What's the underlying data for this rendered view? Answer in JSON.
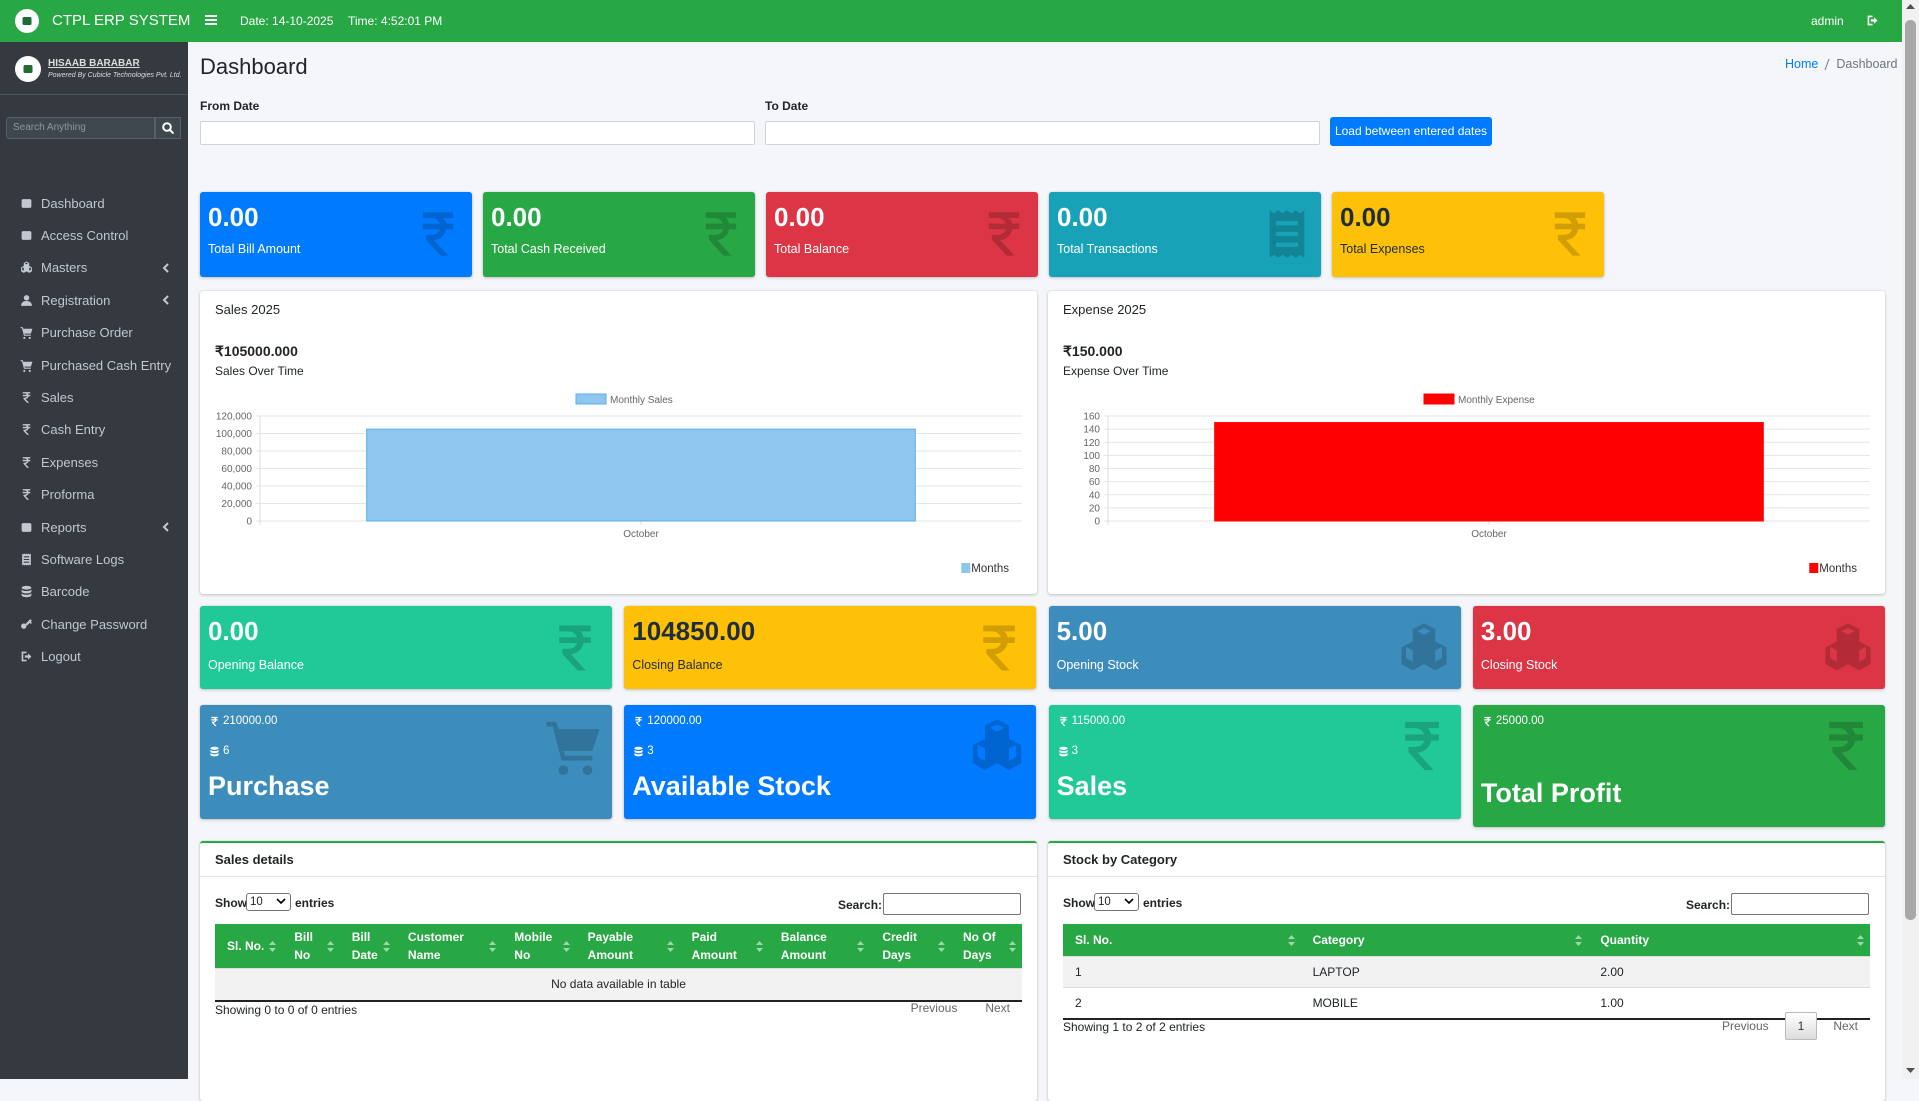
{
  "header": {
    "brand": "CTPL ERP SYSTEM",
    "date": "Date: 14-10-2025",
    "time": "Time: 4:52:01 PM",
    "user": "admin"
  },
  "sidebar": {
    "company": "HISAAB BARABAR",
    "tagline": "Powered By Cubicle Technologies Pvt. Ltd.",
    "search_placeholder": "Search Anything",
    "menu": [
      {
        "label": "Dashboard"
      },
      {
        "label": "Access Control"
      },
      {
        "label": "Masters",
        "submenu": true
      },
      {
        "label": "Registration",
        "submenu": true
      },
      {
        "label": "Purchase Order"
      },
      {
        "label": "Purchased Cash Entry"
      },
      {
        "label": "Sales"
      },
      {
        "label": "Cash Entry"
      },
      {
        "label": "Expenses"
      },
      {
        "label": "Proforma"
      },
      {
        "label": "Reports",
        "submenu": true
      },
      {
        "label": "Software Logs"
      },
      {
        "label": "Barcode"
      },
      {
        "label": "Change Password"
      },
      {
        "label": "Logout"
      }
    ]
  },
  "page": {
    "title": "Dashboard",
    "breadcrumb": [
      "Home",
      "Dashboard"
    ]
  },
  "filter": {
    "from_label": "From Date",
    "to_label": "To Date",
    "button": "Load between entered dates"
  },
  "summary_cards": [
    {
      "value": "0.00",
      "label": "Total Bill Amount",
      "color": "#007bff"
    },
    {
      "value": "0.00",
      "label": "Total Cash Received",
      "color": "#28a745"
    },
    {
      "value": "0.00",
      "label": "Total Balance",
      "color": "#dc3545"
    },
    {
      "value": "0.00",
      "label": "Total Transactions",
      "color": "#17a2b8"
    },
    {
      "value": "0.00",
      "label": "Total Expenses",
      "color": "#ffc107"
    }
  ],
  "charts": [
    {
      "title": "Sales 2025",
      "total": "₹105000.000",
      "subtitle": "Sales Over Time",
      "chart_data": {
        "type": "bar",
        "categories": [
          "October"
        ],
        "series": [
          {
            "name": "Monthly Sales",
            "color": "#8ec6f0",
            "values": [
              105000
            ]
          }
        ],
        "ylim": [
          0,
          120000
        ],
        "yticks": [
          0,
          {
            "value": 20000,
            "label": "20,000"
          },
          {
            "value": 40000,
            "label": "40,000"
          },
          {
            "value": 60000,
            "label": "60,000"
          },
          {
            "value": 80000,
            "label": "80,000"
          },
          {
            "value": 100000,
            "label": "100,000"
          },
          {
            "value": 120000,
            "label": "120,000"
          }
        ],
        "x_label": "Months",
        "grid": true
      }
    },
    {
      "title": "Expense 2025",
      "total": "₹150.000",
      "subtitle": "Expense Over Time",
      "chart_data": {
        "type": "bar",
        "categories": [
          "October"
        ],
        "series": [
          {
            "name": "Monthly Expense",
            "color": "#ff0000",
            "values": [
              150
            ]
          }
        ],
        "ylim": [
          0,
          160
        ],
        "yticks": [
          0,
          20,
          40,
          60,
          80,
          100,
          120,
          140,
          160
        ],
        "x_label": "Months",
        "grid": true
      }
    }
  ],
  "balance_cards": [
    {
      "value": "0.00",
      "label": "Opening Balance",
      "color": "#20c997"
    },
    {
      "value": "104850.00",
      "label": "Closing Balance",
      "color": "#ffc107"
    },
    {
      "value": "5.00",
      "label": "Opening Stock",
      "color": "#3c8dbc"
    },
    {
      "value": "3.00",
      "label": "Closing Stock",
      "color": "#dc3545"
    }
  ],
  "summary_tiles": [
    {
      "amount": "210000.00",
      "count": "6",
      "label": "Purchase",
      "color": "#3c8dbc"
    },
    {
      "amount": "120000.00",
      "count": "3",
      "label": "Available Stock",
      "color": "#007bff"
    },
    {
      "amount": "115000.00",
      "count": "3",
      "label": "Sales",
      "color": "#20c997"
    },
    {
      "amount": "25000.00",
      "label": "Total Profit",
      "color": "#28a745"
    }
  ],
  "tables": [
    {
      "title": "Sales details",
      "show": "Show",
      "length": "10",
      "entries": "entries",
      "search": "Search:",
      "columns": [
        "Sl. No.",
        "Bill No",
        "Bill Date",
        "Customer Name",
        "Mobile No",
        "Payable Amount",
        "Paid Amount",
        "Balance Amount",
        "Credit Days",
        "No Of Days"
      ],
      "empty": "No data available in table",
      "info": "Showing 0 to 0 of 0 entries",
      "previous": "Previous",
      "next": "Next"
    },
    {
      "title": "Stock by Category",
      "show": "Show",
      "length": "10",
      "entries": "entries",
      "search": "Search:",
      "columns": [
        "Sl. No.",
        "Category",
        "Quantity"
      ],
      "rows": [
        [
          "1",
          "LAPTOP",
          "2.00"
        ],
        [
          "2",
          "MOBILE",
          "1.00"
        ]
      ],
      "info": "Showing 1 to 2 of 2 entries",
      "previous": "Previous",
      "page": "1",
      "next": "Next"
    }
  ]
}
